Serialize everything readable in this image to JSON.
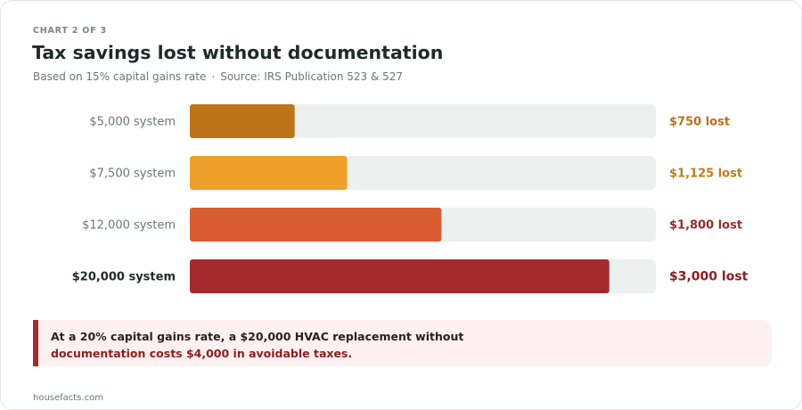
{
  "header": {
    "eyebrow": "CHART 2 OF 3",
    "title": "Tax savings lost without documentation",
    "subtitle_rate": "Based on 15% capital gains rate",
    "subtitle_sep": "·",
    "subtitle_source": "Source: IRS Publication 523 & 527"
  },
  "chart_data": {
    "type": "bar",
    "orientation": "horizontal",
    "categories": [
      "$5,000 system",
      "$7,500 system",
      "$12,000 system",
      "$20,000 system"
    ],
    "values": [
      750,
      1125,
      1800,
      3000
    ],
    "value_labels": [
      "$750 lost",
      "$1,125 lost",
      "$1,800 lost",
      "$3,000 lost"
    ],
    "xlim": [
      0,
      3333
    ],
    "colors": [
      "#bd7419",
      "#efa02a",
      "#d95c32",
      "#a52a2e"
    ],
    "label_colors": [
      "#b8701a",
      "#c07c18",
      "#9b2a2a",
      "#8e1c1f"
    ],
    "track_color": "#ecf1ef",
    "emphasized_index": 3,
    "grid": false
  },
  "callout": {
    "line1": "At a 20% capital gains rate, a $20,000 HVAC replacement without",
    "line2": "documentation costs $4,000 in avoidable taxes.",
    "accent_color": "#a52a2e"
  },
  "footer": {
    "site": "housefacts.com"
  }
}
